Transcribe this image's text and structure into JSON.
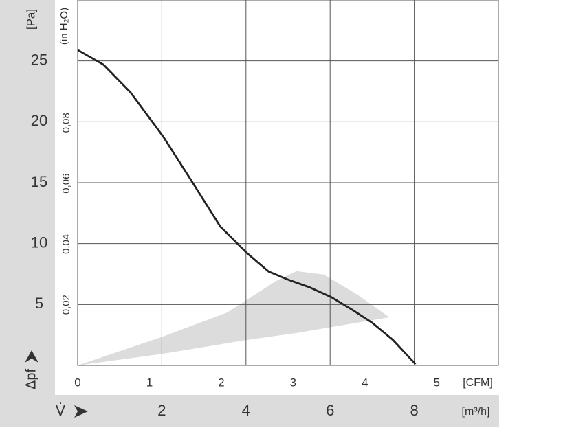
{
  "chart_data": {
    "type": "line",
    "y_label": "[Pa]",
    "y2_label": "(in H₂O)",
    "y_arrow_label": "Δpf",
    "x_label": "V̇",
    "x_unit": "[m³/h]",
    "x2_unit": "[CFM]",
    "xlim": [
      0,
      10
    ],
    "xticks": [
      2,
      4,
      6,
      8
    ],
    "x2lim": [
      0,
      5.86
    ],
    "x2ticks": [
      0,
      1,
      2,
      3,
      4,
      5
    ],
    "ylim": [
      0,
      30
    ],
    "yticks": [
      5,
      10,
      15,
      20,
      25
    ],
    "y2lim": [
      0,
      0.1205
    ],
    "y2ticks": [
      {
        "value": 0.02,
        "label": "0,02"
      },
      {
        "value": 0.04,
        "label": "0,04"
      },
      {
        "value": 0.06,
        "label": "0,06"
      },
      {
        "value": 0.08,
        "label": "0,08"
      }
    ],
    "grid": true,
    "series": [
      {
        "color": "#222222",
        "x": [
          0,
          0.61,
          1.26,
          2.03,
          2.66,
          3.39,
          4.03,
          4.54,
          5.03,
          5.52,
          6.03,
          6.51,
          7.0,
          7.49,
          8.03
        ],
        "values": [
          25.9,
          24.7,
          22.4,
          18.8,
          15.4,
          11.4,
          9.2,
          7.7,
          7.0,
          6.4,
          5.6,
          4.6,
          3.5,
          2.1,
          0.1
        ]
      }
    ],
    "region": {
      "color": "#dcdcdc",
      "x": [
        0,
        2.03,
        4.03,
        5.2,
        7.41,
        6.67,
        5.85,
        5.2,
        4.7,
        3.56,
        2.03
      ],
      "y": [
        0,
        0.96,
        2.09,
        2.66,
        3.95,
        5.76,
        7.46,
        7.74,
        6.9,
        4.35,
        2.37
      ]
    }
  }
}
